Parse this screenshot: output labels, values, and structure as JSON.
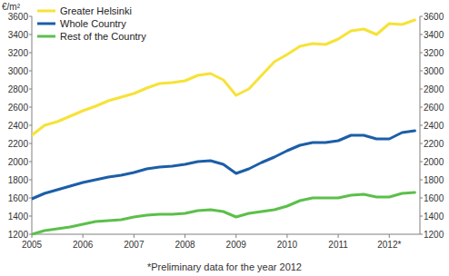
{
  "chart_data": {
    "type": "line",
    "ylabel": "€/m²",
    "annotations": [
      "*Preliminary data for the year 2012"
    ],
    "x": [
      2005,
      2005.25,
      2005.5,
      2005.75,
      2006,
      2006.25,
      2006.5,
      2006.75,
      2007,
      2007.25,
      2007.5,
      2007.75,
      2008,
      2008.25,
      2008.5,
      2008.75,
      2009,
      2009.25,
      2009.5,
      2009.75,
      2010,
      2010.25,
      2010.5,
      2010.75,
      2011,
      2011.25,
      2011.5,
      2011.75,
      2012,
      2012.25,
      2012.5
    ],
    "series": [
      {
        "name": "Greater Helsinki",
        "color": "#f7e238",
        "values": [
          2290,
          2400,
          2440,
          2500,
          2560,
          2610,
          2670,
          2710,
          2750,
          2810,
          2860,
          2870,
          2890,
          2950,
          2970,
          2900,
          2730,
          2800,
          2950,
          3100,
          3180,
          3270,
          3300,
          3290,
          3350,
          3440,
          3460,
          3400,
          3520,
          3510,
          3560
        ]
      },
      {
        "name": "Whole Country",
        "color": "#1c5ea8",
        "values": [
          1590,
          1650,
          1690,
          1730,
          1770,
          1800,
          1830,
          1850,
          1880,
          1920,
          1940,
          1950,
          1970,
          2000,
          2010,
          1970,
          1870,
          1920,
          1990,
          2050,
          2120,
          2180,
          2210,
          2210,
          2230,
          2290,
          2290,
          2250,
          2250,
          2320,
          2340
        ]
      },
      {
        "name": "Rest of the Country",
        "color": "#5cbf4b",
        "values": [
          1200,
          1240,
          1260,
          1280,
          1310,
          1340,
          1350,
          1360,
          1390,
          1410,
          1420,
          1420,
          1430,
          1460,
          1470,
          1450,
          1390,
          1430,
          1450,
          1470,
          1510,
          1570,
          1600,
          1600,
          1600,
          1630,
          1640,
          1610,
          1610,
          1650,
          1660
        ]
      }
    ],
    "xlim": [
      2005,
      2012.6
    ],
    "xticks": [
      2005,
      2006,
      2007,
      2008,
      2009,
      2010,
      2011,
      {
        "value": 2012,
        "label": "2012*"
      }
    ],
    "ylim": [
      1200,
      3600
    ],
    "yticks": [
      1200,
      1400,
      1600,
      1800,
      2000,
      2200,
      2400,
      2600,
      2800,
      3000,
      3200,
      3400,
      3600
    ],
    "y2lim": [
      1200,
      3600
    ],
    "y2ticks": [
      1200,
      1400,
      1600,
      1800,
      2000,
      2200,
      2400,
      2600,
      2800,
      3000,
      3200,
      3400,
      3600
    ],
    "grid": false,
    "legend": "upper-left"
  }
}
